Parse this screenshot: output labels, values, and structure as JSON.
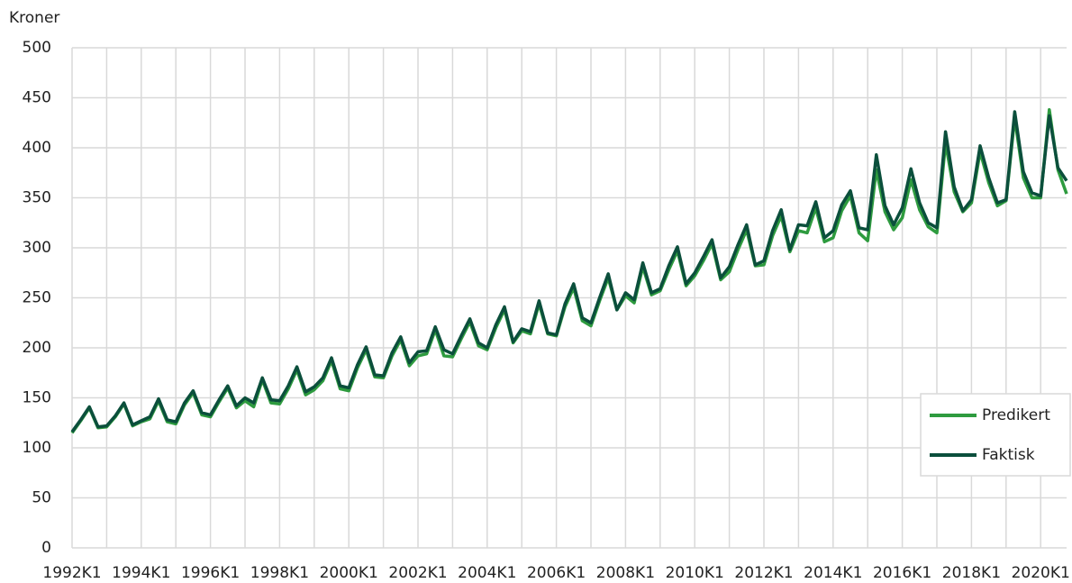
{
  "chart_data": {
    "type": "line",
    "y_axis_label": "Kroner",
    "categories": [
      "1992K1",
      null,
      null,
      null,
      null,
      null,
      null,
      null,
      "1994K1",
      null,
      null,
      null,
      null,
      null,
      null,
      null,
      "1996K1",
      null,
      null,
      null,
      null,
      null,
      null,
      null,
      "1998K1",
      null,
      null,
      null,
      null,
      null,
      null,
      null,
      "2000K1",
      null,
      null,
      null,
      null,
      null,
      null,
      null,
      "2002K1",
      null,
      null,
      null,
      null,
      null,
      null,
      null,
      "2004K1",
      null,
      null,
      null,
      null,
      null,
      null,
      null,
      "2006K1",
      null,
      null,
      null,
      null,
      null,
      null,
      null,
      "2008K1",
      null,
      null,
      null,
      null,
      null,
      null,
      null,
      "2010K1",
      null,
      null,
      null,
      null,
      null,
      null,
      null,
      "2012K1",
      null,
      null,
      null,
      null,
      null,
      null,
      null,
      "2014K1",
      null,
      null,
      null,
      null,
      null,
      null,
      null,
      "2016K1",
      null,
      null,
      null,
      null,
      null,
      null,
      null,
      "2018K1",
      null,
      null,
      null,
      null,
      null,
      null,
      null,
      "2020K1",
      null,
      null,
      null
    ],
    "series": [
      {
        "name": "Predikert",
        "color": "#2e9b3f",
        "values": [
          115,
          127,
          140,
          120,
          121,
          131,
          144,
          122,
          126,
          129,
          147,
          126,
          124,
          143,
          155,
          133,
          131,
          146,
          160,
          140,
          147,
          141,
          168,
          145,
          144,
          159,
          178,
          153,
          158,
          167,
          187,
          159,
          157,
          180,
          198,
          171,
          170,
          192,
          208,
          182,
          192,
          194,
          218,
          192,
          191,
          209,
          226,
          202,
          198,
          220,
          238,
          205,
          217,
          214,
          244,
          214,
          212,
          241,
          260,
          227,
          222,
          247,
          270,
          238,
          252,
          245,
          281,
          253,
          257,
          278,
          297,
          262,
          272,
          287,
          304,
          268,
          276,
          298,
          318,
          282,
          283,
          312,
          332,
          296,
          317,
          315,
          340,
          306,
          310,
          337,
          352,
          315,
          307,
          378,
          336,
          318,
          330,
          368,
          338,
          321,
          315,
          405,
          356,
          336,
          345,
          396,
          365,
          342,
          347,
          430,
          370,
          350,
          350,
          438,
          378,
          354
        ]
      },
      {
        "name": "Faktisk",
        "color": "#0b4f3c",
        "values": [
          116,
          128,
          141,
          121,
          122,
          132,
          145,
          123,
          127,
          131,
          149,
          128,
          126,
          145,
          157,
          135,
          133,
          148,
          162,
          142,
          150,
          145,
          170,
          148,
          147,
          162,
          181,
          156,
          161,
          170,
          190,
          162,
          160,
          183,
          201,
          173,
          172,
          195,
          211,
          185,
          196,
          197,
          221,
          198,
          194,
          212,
          229,
          205,
          200,
          223,
          241,
          206,
          219,
          216,
          247,
          215,
          213,
          244,
          264,
          230,
          225,
          250,
          274,
          238,
          255,
          248,
          285,
          255,
          259,
          282,
          301,
          264,
          275,
          291,
          308,
          270,
          281,
          303,
          323,
          283,
          287,
          317,
          338,
          298,
          323,
          322,
          346,
          310,
          317,
          343,
          357,
          320,
          318,
          393,
          342,
          323,
          340,
          379,
          345,
          325,
          320,
          416,
          361,
          337,
          348,
          402,
          370,
          345,
          348,
          436,
          376,
          355,
          352,
          432,
          380,
          367
        ]
      }
    ],
    "ylim": [
      0,
      500
    ],
    "yticks": [
      0,
      50,
      100,
      150,
      200,
      250,
      300,
      350,
      400,
      450,
      500
    ],
    "grid": true,
    "legend": "lower right"
  }
}
